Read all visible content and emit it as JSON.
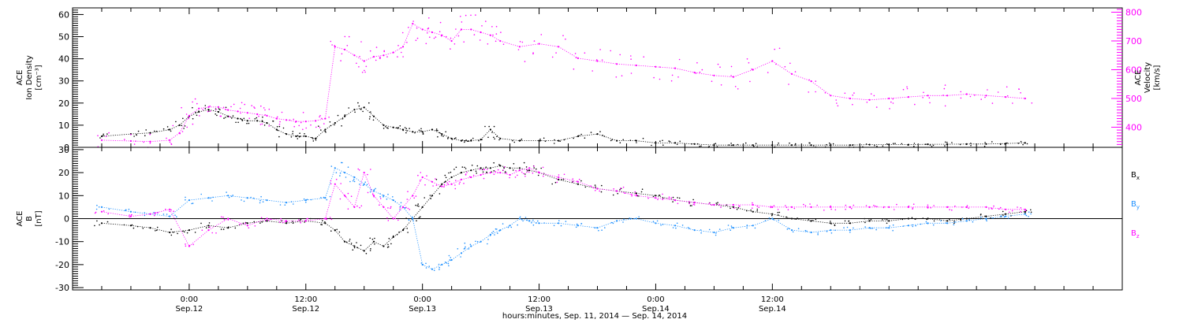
{
  "chart_data": [
    {
      "type": "scatter",
      "left_ylabel_lines": [
        "ACE",
        "Ion Density",
        "[cm⁻³]"
      ],
      "right_ylabel_lines": [
        "ACE",
        "Velocity",
        "[km/s]"
      ],
      "left_ylim": [
        0,
        63
      ],
      "left_yticks": [
        0,
        10,
        20,
        30,
        40,
        50,
        60
      ],
      "right_ylim": [
        330,
        815
      ],
      "right_yticks": [
        400,
        500,
        600,
        700,
        800
      ],
      "grid": false,
      "series": [
        {
          "color": "#000000",
          "axis": "left",
          "x": [
            -9,
            -6,
            -4,
            -2,
            -1,
            0,
            1,
            2,
            3,
            4,
            5,
            6,
            7,
            8,
            9,
            10,
            11,
            12,
            13,
            14,
            15,
            16,
            17,
            18,
            19,
            20,
            21,
            22,
            23,
            24,
            25,
            26,
            27,
            28,
            29,
            30,
            31,
            32,
            34,
            36,
            38,
            40,
            42,
            44,
            46,
            48,
            50,
            52,
            54,
            56,
            58,
            60,
            62,
            64,
            66,
            68,
            70,
            72,
            74,
            76,
            78,
            80,
            82,
            84,
            86
          ],
          "y": [
            5,
            6,
            6.5,
            8,
            10,
            14,
            16,
            17,
            16,
            14,
            13,
            12,
            12,
            11,
            8,
            6,
            5,
            5,
            4,
            8,
            11,
            14,
            17,
            18,
            14,
            10,
            9,
            8,
            7,
            7,
            8,
            6,
            4,
            3,
            3,
            3.5,
            8,
            4,
            3,
            3,
            3,
            5,
            6,
            3,
            3,
            2,
            2,
            1.5,
            1,
            1,
            1,
            1,
            1,
            1,
            1,
            1,
            1.2,
            1.2,
            1.2,
            1.4,
            1.4,
            1.5,
            1.5,
            1.7,
            2
          ]
        },
        {
          "color": "#ff00ff",
          "axis": "right",
          "x": [
            -9,
            -6,
            -4,
            -2,
            -1,
            0,
            1,
            2,
            3,
            4,
            5,
            6,
            7,
            8,
            9,
            10,
            11,
            12,
            13,
            14,
            15,
            16,
            17,
            18,
            19,
            20,
            21,
            22,
            23,
            24,
            25,
            26,
            27,
            28,
            29,
            30,
            31,
            32,
            34,
            36,
            38,
            40,
            42,
            44,
            46,
            48,
            50,
            52,
            54,
            56,
            58,
            60,
            62,
            64,
            66,
            68,
            70,
            72,
            74,
            76,
            78,
            80,
            82,
            84,
            86
          ],
          "y": [
            355,
            352,
            350,
            355,
            380,
            440,
            465,
            470,
            470,
            460,
            455,
            450,
            445,
            440,
            430,
            425,
            420,
            420,
            422,
            430,
            680,
            670,
            650,
            630,
            645,
            650,
            660,
            680,
            760,
            740,
            730,
            720,
            700,
            740,
            740,
            730,
            720,
            700,
            680,
            690,
            680,
            640,
            630,
            620,
            615,
            610,
            605,
            590,
            580,
            575,
            600,
            630,
            585,
            560,
            510,
            500,
            495,
            500,
            505,
            510,
            510,
            515,
            510,
            505,
            500
          ]
        }
      ]
    },
    {
      "type": "scatter",
      "left_ylabel_lines": [
        "ACE",
        "B",
        "[nT]"
      ],
      "ylim": [
        -31,
        31
      ],
      "yticks": [
        -30,
        -20,
        -10,
        0,
        10,
        20,
        30
      ],
      "zero_line": true,
      "grid": false,
      "series": [
        {
          "name": "Bx",
          "color": "#000000",
          "x": [
            -9,
            -6,
            -4,
            -2,
            0,
            2,
            4,
            6,
            8,
            10,
            12,
            14,
            15,
            16,
            17,
            18,
            19,
            20,
            21,
            22,
            23,
            24,
            25,
            26,
            27,
            28,
            29,
            30,
            31,
            32,
            33,
            34,
            35,
            36,
            38,
            40,
            42,
            44,
            46,
            48,
            50,
            52,
            54,
            56,
            58,
            60,
            62,
            64,
            66,
            68,
            70,
            72,
            74,
            76,
            78,
            80,
            82,
            84,
            86
          ],
          "y": [
            -2,
            -3,
            -4,
            -6,
            -5,
            -3,
            -4,
            -2,
            -1,
            -2,
            -1,
            -2,
            -5,
            -10,
            -12,
            -14,
            -10,
            -12,
            -8,
            -5,
            0,
            5,
            10,
            15,
            18,
            20,
            21,
            22,
            22,
            23,
            22,
            22,
            21,
            20,
            17,
            15,
            13,
            12,
            11,
            10,
            8,
            7,
            6,
            5,
            3,
            2,
            0,
            -1,
            -2,
            -2,
            -1,
            -1,
            0,
            0,
            -1,
            0,
            1,
            2,
            3
          ]
        },
        {
          "name": "By",
          "color": "#1e90ff",
          "x": [
            -9,
            -6,
            -4,
            -2,
            0,
            2,
            4,
            6,
            8,
            10,
            12,
            14,
            15,
            16,
            17,
            18,
            19,
            20,
            21,
            22,
            23,
            24,
            25,
            26,
            27,
            28,
            29,
            30,
            31,
            32,
            33,
            34,
            35,
            36,
            38,
            40,
            42,
            44,
            46,
            48,
            50,
            52,
            54,
            56,
            58,
            60,
            62,
            64,
            66,
            68,
            70,
            72,
            74,
            76,
            78,
            80,
            82,
            84,
            86
          ],
          "y": [
            5,
            3,
            2,
            1,
            8,
            9,
            10,
            9,
            8,
            7,
            8,
            9,
            22,
            20,
            18,
            15,
            12,
            10,
            8,
            5,
            0,
            -20,
            -22,
            -20,
            -18,
            -15,
            -12,
            -10,
            -7,
            -5,
            -3,
            0,
            -1,
            -2,
            -2,
            -3,
            -4,
            -1,
            0,
            -2,
            -3,
            -5,
            -6,
            -4,
            -3,
            0,
            -5,
            -6,
            -5,
            -5,
            -4,
            -4,
            -3,
            -2,
            -2,
            -1,
            0,
            1,
            2
          ]
        },
        {
          "name": "Bz",
          "color": "#ff00ff",
          "x": [
            -9,
            -6,
            -4,
            -2,
            0,
            2,
            4,
            6,
            8,
            10,
            12,
            14,
            15,
            16,
            17,
            18,
            19,
            20,
            21,
            22,
            23,
            24,
            25,
            26,
            27,
            28,
            29,
            30,
            31,
            32,
            33,
            34,
            35,
            36,
            38,
            40,
            42,
            44,
            46,
            48,
            50,
            52,
            54,
            56,
            58,
            60,
            62,
            64,
            66,
            68,
            70,
            72,
            74,
            76,
            78,
            80,
            82,
            84,
            86
          ],
          "y": [
            3,
            1,
            2,
            4,
            -12,
            -5,
            0,
            -3,
            0,
            -1,
            -1,
            0,
            15,
            10,
            5,
            20,
            10,
            5,
            0,
            5,
            10,
            18,
            16,
            14,
            15,
            17,
            18,
            19,
            20,
            20,
            19,
            21,
            22,
            20,
            18,
            16,
            13,
            12,
            10,
            9,
            8,
            7,
            6,
            6,
            6,
            5,
            5,
            5,
            5,
            5,
            5,
            5,
            5,
            5,
            5,
            5,
            5,
            4,
            4
          ]
        }
      ],
      "legend": [
        "B",
        "B",
        "B"
      ],
      "legend_subscripts": [
        "x",
        "y",
        "z"
      ]
    }
  ],
  "time_axis": {
    "xlabel": "hours:minutes, Sep. 11, 2014 — Sep. 14, 2014",
    "range_hours": [
      -12,
      96
    ],
    "major_ticks": [
      {
        "hour": 0,
        "time": "0:00",
        "date": "Sep.12"
      },
      {
        "hour": 12,
        "time": "12:00",
        "date": "Sep.12"
      },
      {
        "hour": 24,
        "time": "0:00",
        "date": "Sep.13"
      },
      {
        "hour": 36,
        "time": "12:00",
        "date": "Sep.13"
      },
      {
        "hour": 48,
        "time": "0:00",
        "date": "Sep.14"
      },
      {
        "hour": 60,
        "time": "12:00",
        "date": "Sep.14"
      }
    ],
    "minor_tick_step_hours": 3
  }
}
